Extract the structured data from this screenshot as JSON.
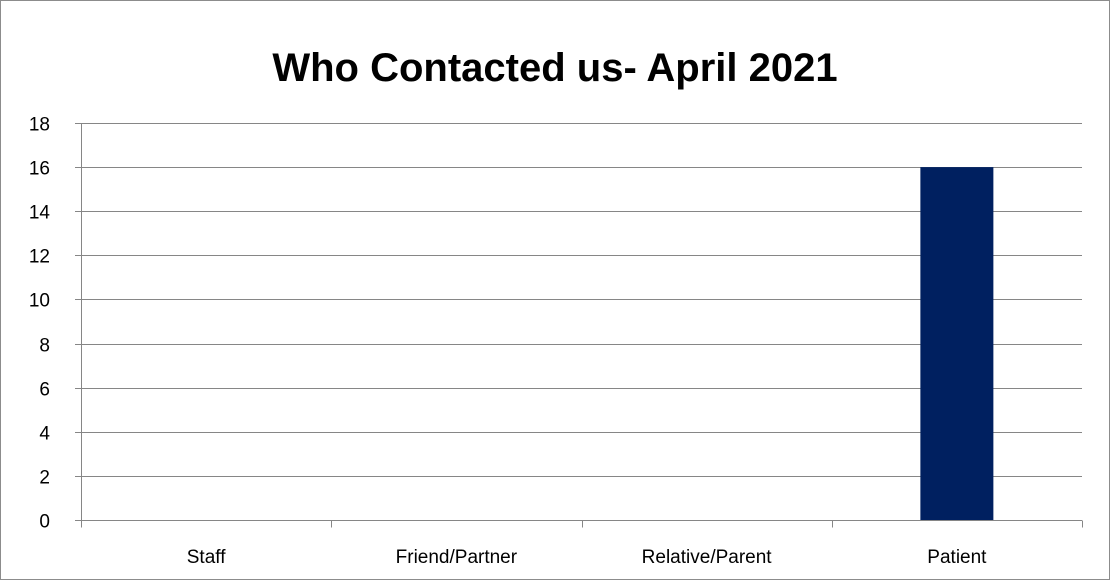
{
  "chart_data": {
    "type": "bar",
    "title": "Who Contacted us- April 2021",
    "categories": [
      "Staff",
      "Friend/Partner",
      "Relative/Parent",
      "Patient"
    ],
    "values": [
      0,
      0,
      0,
      16
    ],
    "xlabel": "",
    "ylabel": "",
    "ylim": [
      0,
      18
    ],
    "yticks": [
      0,
      2,
      4,
      6,
      8,
      10,
      12,
      14,
      16,
      18
    ],
    "grid": true,
    "legend": "none",
    "bar_color": "#002060"
  }
}
